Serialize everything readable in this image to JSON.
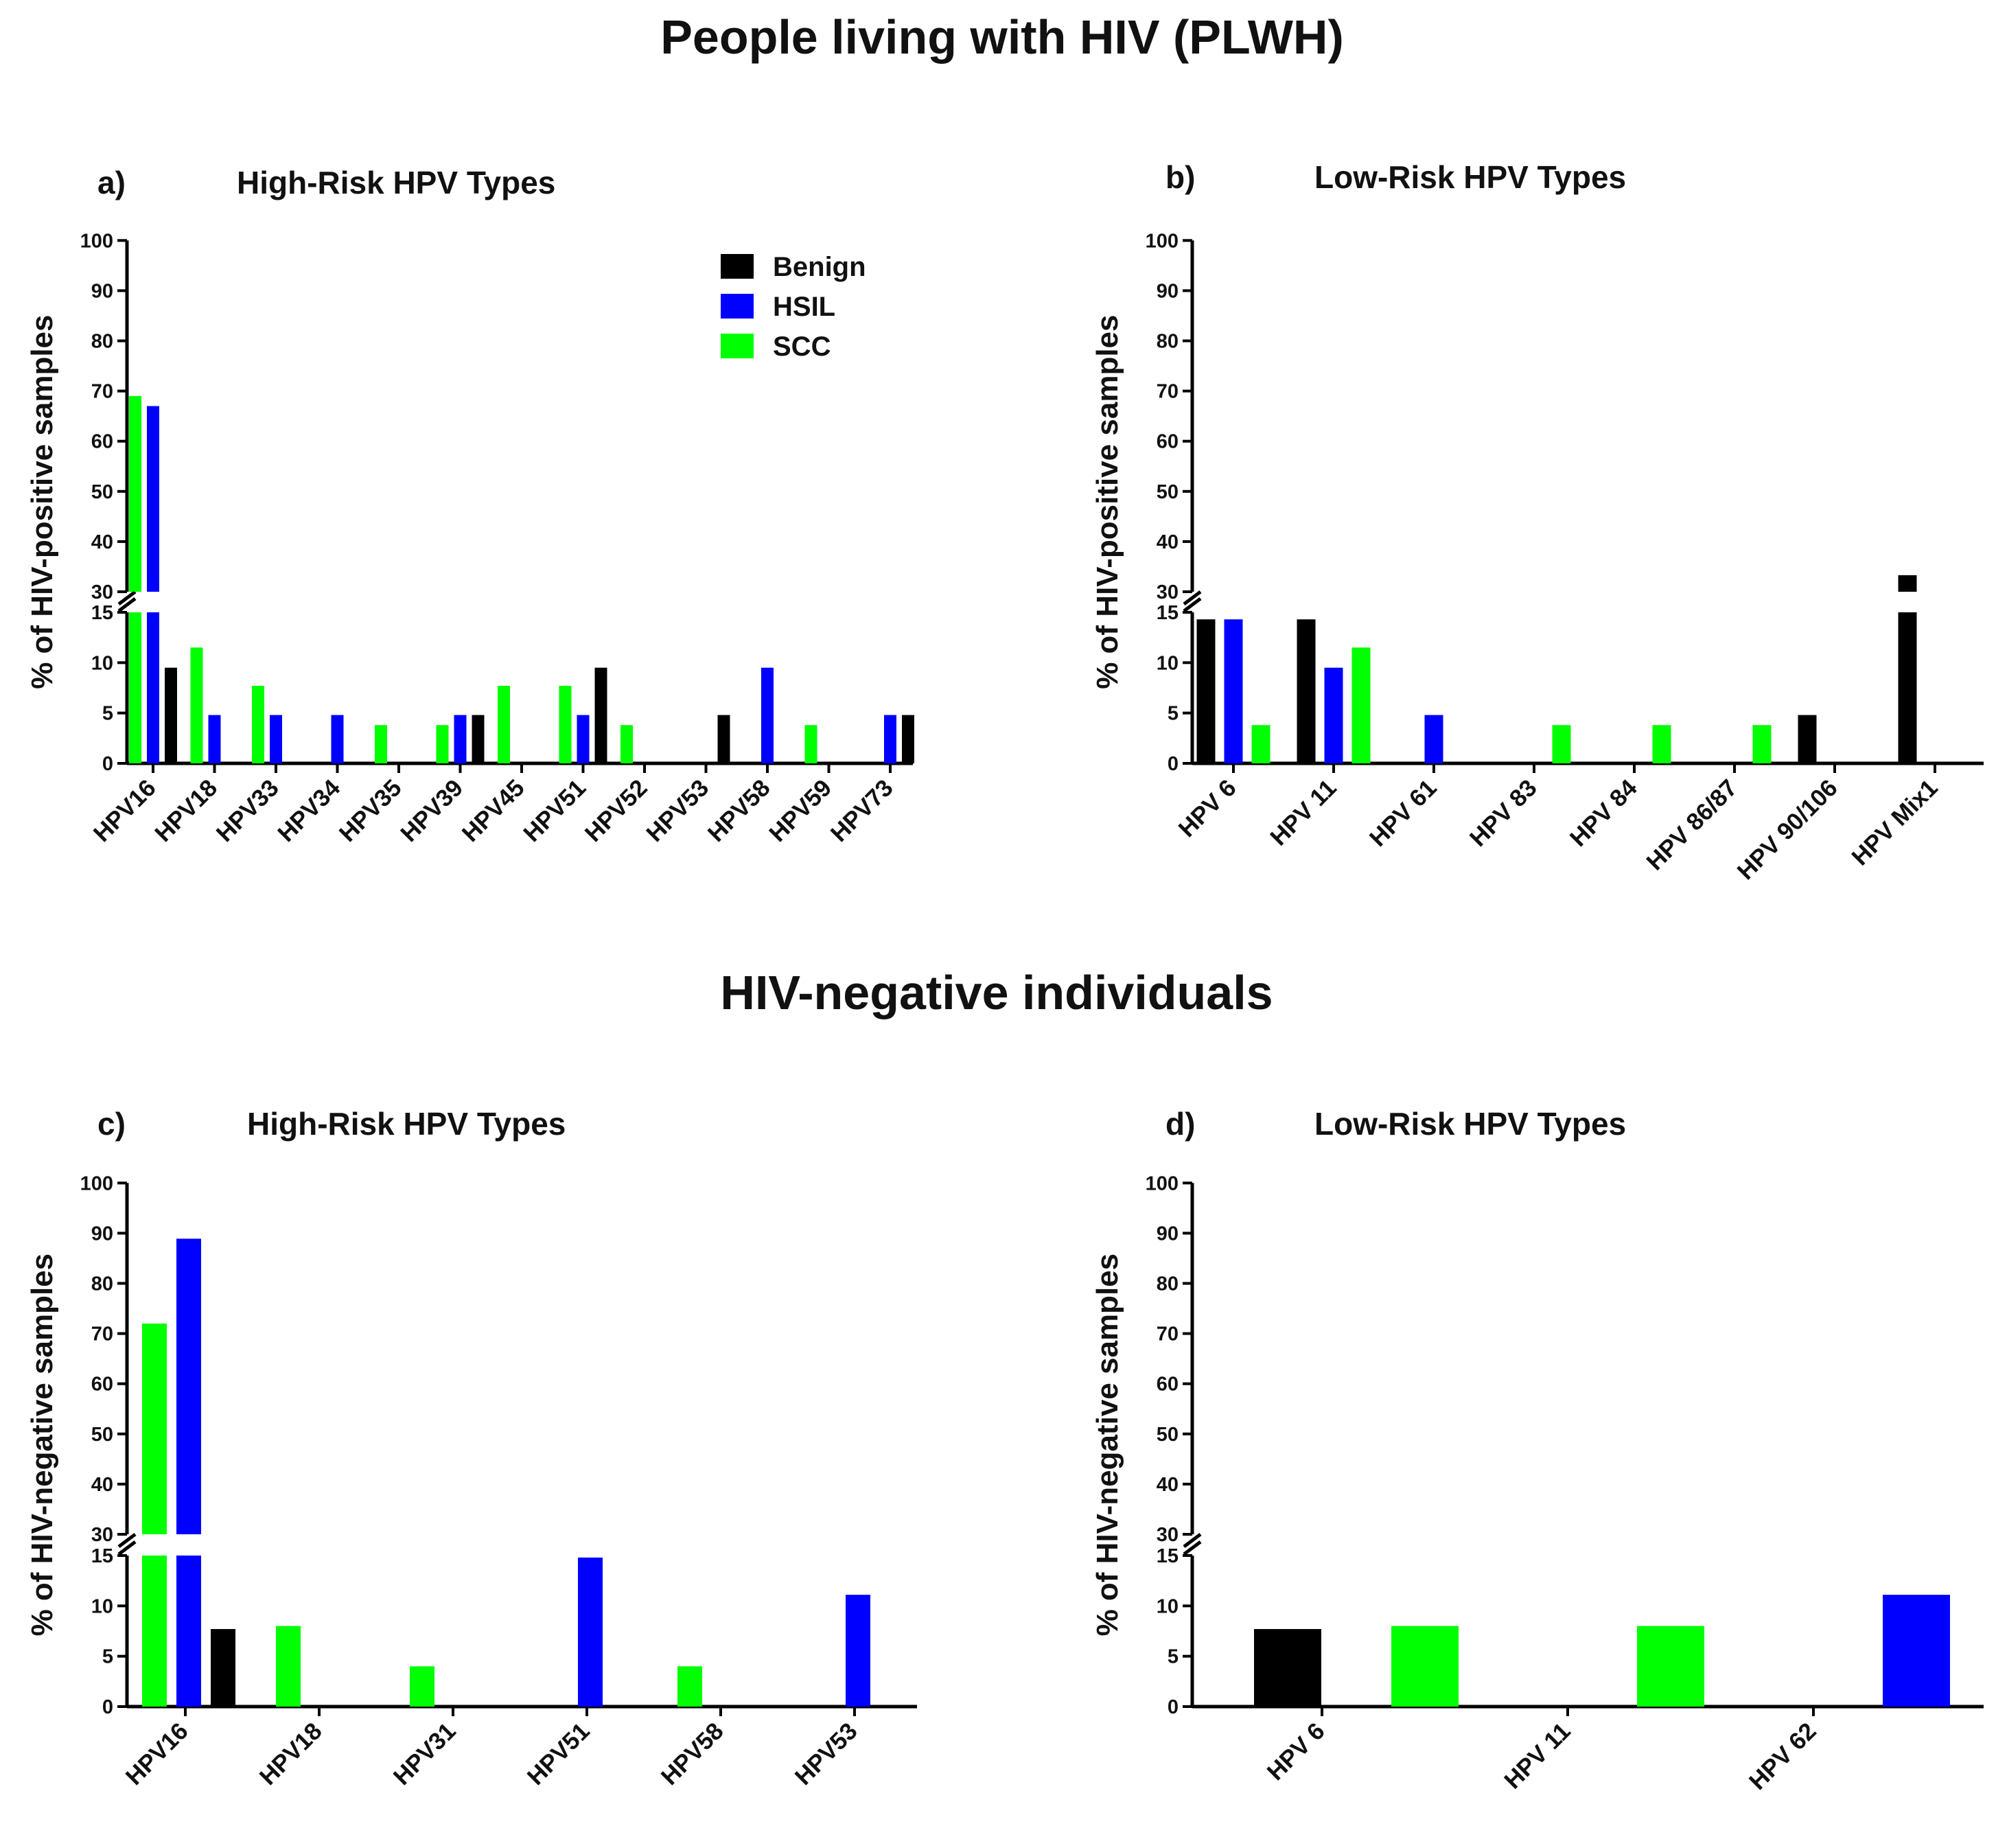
{
  "section_titles": {
    "top": "People living with HIV (PLWH)",
    "bottom": "HIV-negative individuals"
  },
  "legend": [
    {
      "name": "Benign",
      "color": "#000000"
    },
    {
      "name": "HSIL",
      "color": "#0000ff"
    },
    {
      "name": "SCC",
      "color": "#00ff00"
    }
  ],
  "chart_data": [
    {
      "id": "a",
      "type": "bar",
      "panel_label": "a)",
      "title": "High-Risk HPV Types",
      "ylabel": "% of  HIV-positive samples",
      "ylim": [
        0,
        100
      ],
      "axis_break": [
        15,
        30
      ],
      "yticks_lower": [
        0,
        5,
        10,
        15
      ],
      "yticks_upper": [
        30,
        40,
        50,
        60,
        70,
        80,
        90,
        100
      ],
      "categories": [
        "HPV16",
        "HPV18",
        "HPV33",
        "HPV34",
        "HPV35",
        "HPV39",
        "HPV45",
        "HPV51",
        "HPV52",
        "HPV53",
        "HPV58",
        "HPV59",
        "HPV73"
      ],
      "series": [
        {
          "name": "SCC",
          "values": [
            69,
            11.5,
            7.7,
            0,
            3.8,
            3.8,
            7.7,
            7.7,
            3.8,
            0,
            0,
            3.8,
            0
          ]
        },
        {
          "name": "HSIL",
          "values": [
            67,
            4.8,
            4.8,
            4.8,
            0,
            4.8,
            0,
            4.8,
            0,
            0,
            9.5,
            0,
            4.8
          ]
        },
        {
          "name": "Benign",
          "values": [
            9.5,
            0,
            0,
            0,
            0,
            4.8,
            0,
            9.5,
            0,
            4.8,
            0,
            0,
            4.8
          ]
        }
      ]
    },
    {
      "id": "b",
      "type": "bar",
      "panel_label": "b)",
      "title": "Low-Risk HPV Types",
      "ylabel": "% of HIV-positive samples",
      "ylim": [
        0,
        100
      ],
      "axis_break": [
        15,
        30
      ],
      "yticks_lower": [
        0,
        5,
        10,
        15
      ],
      "yticks_upper": [
        30,
        40,
        50,
        60,
        70,
        80,
        90,
        100
      ],
      "categories": [
        "HPV 6",
        "HPV 11",
        "HPV 61",
        "HPV 83",
        "HPV 84",
        "HPV 86/87",
        "HPV 90/106",
        "HPV Mix1"
      ],
      "series": [
        {
          "name": "Benign",
          "values": [
            14.3,
            14.3,
            0,
            0,
            0,
            0,
            4.8,
            33.3
          ]
        },
        {
          "name": "HSIL",
          "values": [
            14.3,
            9.5,
            4.8,
            0,
            0,
            0,
            0,
            0
          ]
        },
        {
          "name": "SCC",
          "values": [
            3.8,
            11.5,
            0,
            3.8,
            3.8,
            3.8,
            0,
            0
          ]
        }
      ]
    },
    {
      "id": "c",
      "type": "bar",
      "panel_label": "c)",
      "title": "High-Risk  HPV Types",
      "ylabel": "% of HIV-negative samples",
      "ylim": [
        0,
        100
      ],
      "axis_break": [
        15,
        30
      ],
      "yticks_lower": [
        0,
        5,
        10,
        15
      ],
      "yticks_upper": [
        30,
        40,
        50,
        60,
        70,
        80,
        90,
        100
      ],
      "categories": [
        "HPV16",
        "HPV18",
        "HPV31",
        "HPV51",
        "HPV58",
        "HPV53"
      ],
      "series": [
        {
          "name": "SCC",
          "values": [
            72,
            8,
            4,
            0,
            4,
            0
          ]
        },
        {
          "name": "HSIL",
          "values": [
            88.9,
            0,
            0,
            14.8,
            0,
            11.1
          ]
        },
        {
          "name": "Benign",
          "values": [
            7.7,
            0,
            0,
            0,
            0,
            0
          ]
        }
      ]
    },
    {
      "id": "d",
      "type": "bar",
      "panel_label": "d)",
      "title": "Low-Risk HPV Types",
      "ylabel": "% of HIV-negative samples",
      "ylim": [
        0,
        100
      ],
      "axis_break": [
        15,
        30
      ],
      "yticks_lower": [
        0,
        5,
        10,
        15
      ],
      "yticks_upper": [
        30,
        40,
        50,
        60,
        70,
        80,
        90,
        100
      ],
      "categories": [
        "HPV 6",
        "HPV 11",
        "HPV 62"
      ],
      "series": [
        {
          "name": "Benign",
          "values": [
            7.7,
            0,
            0
          ]
        },
        {
          "name": "SCC",
          "values": [
            8,
            8,
            0
          ]
        },
        {
          "name": "HSIL",
          "values": [
            0,
            0,
            11.1
          ]
        }
      ]
    }
  ]
}
